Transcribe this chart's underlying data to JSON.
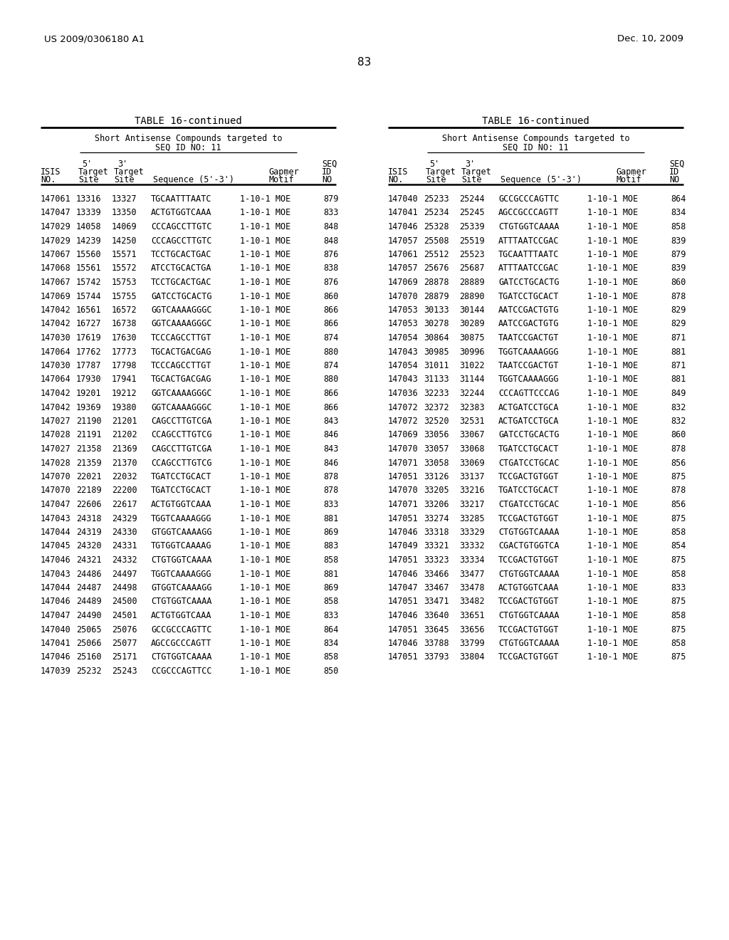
{
  "header_left": "US 2009/0306180 A1",
  "header_right": "Dec. 10, 2009",
  "page_number": "83",
  "table_title": "TABLE 16-continued",
  "table_subtitle": "Short Antisense Compounds targeted to",
  "table_subtitle2": "SEQ ID NO: 11",
  "left_table": [
    [
      "147061",
      "13316",
      "13327",
      "TGCAATTTAATC",
      "1-10-1 MOE",
      "879"
    ],
    [
      "147047",
      "13339",
      "13350",
      "ACTGTGGTCAAA",
      "1-10-1 MOE",
      "833"
    ],
    [
      "147029",
      "14058",
      "14069",
      "CCCAGCCTTGTC",
      "1-10-1 MOE",
      "848"
    ],
    [
      "147029",
      "14239",
      "14250",
      "CCCAGCCTTGTC",
      "1-10-1 MOE",
      "848"
    ],
    [
      "147067",
      "15560",
      "15571",
      "TCCTGCACTGAC",
      "1-10-1 MOE",
      "876"
    ],
    [
      "147068",
      "15561",
      "15572",
      "ATCCTGCACTGA",
      "1-10-1 MOE",
      "838"
    ],
    [
      "147067",
      "15742",
      "15753",
      "TCCTGCACTGAC",
      "1-10-1 MOE",
      "876"
    ],
    [
      "147069",
      "15744",
      "15755",
      "GATCCTGCACTG",
      "1-10-1 MOE",
      "860"
    ],
    [
      "147042",
      "16561",
      "16572",
      "GGTCAAAAGGGC",
      "1-10-1 MOE",
      "866"
    ],
    [
      "147042",
      "16727",
      "16738",
      "GGTCAAAAGGGC",
      "1-10-1 MOE",
      "866"
    ],
    [
      "147030",
      "17619",
      "17630",
      "TCCCAGCCTTGT",
      "1-10-1 MOE",
      "874"
    ],
    [
      "147064",
      "17762",
      "17773",
      "TGCACTGACGAG",
      "1-10-1 MOE",
      "880"
    ],
    [
      "147030",
      "17787",
      "17798",
      "TCCCAGCCTTGT",
      "1-10-1 MOE",
      "874"
    ],
    [
      "147064",
      "17930",
      "17941",
      "TGCACTGACGAG",
      "1-10-1 MOE",
      "880"
    ],
    [
      "147042",
      "19201",
      "19212",
      "GGTCAAAAGGGC",
      "1-10-1 MOE",
      "866"
    ],
    [
      "147042",
      "19369",
      "19380",
      "GGTCAAAAGGGC",
      "1-10-1 MOE",
      "866"
    ],
    [
      "147027",
      "21190",
      "21201",
      "CAGCCTTGTCGA",
      "1-10-1 MOE",
      "843"
    ],
    [
      "147028",
      "21191",
      "21202",
      "CCAGCCTTGTCG",
      "1-10-1 MOE",
      "846"
    ],
    [
      "147027",
      "21358",
      "21369",
      "CAGCCTTGTCGA",
      "1-10-1 MOE",
      "843"
    ],
    [
      "147028",
      "21359",
      "21370",
      "CCAGCCTTGTCG",
      "1-10-1 MOE",
      "846"
    ],
    [
      "147070",
      "22021",
      "22032",
      "TGATCCTGCACT",
      "1-10-1 MOE",
      "878"
    ],
    [
      "147070",
      "22189",
      "22200",
      "TGATCCTGCACT",
      "1-10-1 MOE",
      "878"
    ],
    [
      "147047",
      "22606",
      "22617",
      "ACTGTGGTCAAA",
      "1-10-1 MOE",
      "833"
    ],
    [
      "147043",
      "24318",
      "24329",
      "TGGTCAAAAGGG",
      "1-10-1 MOE",
      "881"
    ],
    [
      "147044",
      "24319",
      "24330",
      "GTGGTCAAAAGG",
      "1-10-1 MOE",
      "869"
    ],
    [
      "147045",
      "24320",
      "24331",
      "TGTGGTCAAAAG",
      "1-10-1 MOE",
      "883"
    ],
    [
      "147046",
      "24321",
      "24332",
      "CTGTGGTCAAAA",
      "1-10-1 MOE",
      "858"
    ],
    [
      "147043",
      "24486",
      "24497",
      "TGGTCAAAAGGG",
      "1-10-1 MOE",
      "881"
    ],
    [
      "147044",
      "24487",
      "24498",
      "GTGGTCAAAAGG",
      "1-10-1 MOE",
      "869"
    ],
    [
      "147046",
      "24489",
      "24500",
      "CTGTGGTCAAAA",
      "1-10-1 MOE",
      "858"
    ],
    [
      "147047",
      "24490",
      "24501",
      "ACTGTGGTCAAA",
      "1-10-1 MOE",
      "833"
    ],
    [
      "147040",
      "25065",
      "25076",
      "GCCGCCCAGTTC",
      "1-10-1 MOE",
      "864"
    ],
    [
      "147041",
      "25066",
      "25077",
      "AGCCGCCCAGTT",
      "1-10-1 MOE",
      "834"
    ],
    [
      "147046",
      "25160",
      "25171",
      "CTGTGGTCAAAA",
      "1-10-1 MOE",
      "858"
    ],
    [
      "147039",
      "25232",
      "25243",
      "CCGCCCAGTTCC",
      "1-10-1 MOE",
      "850"
    ]
  ],
  "right_table": [
    [
      "147040",
      "25233",
      "25244",
      "GCCGCCCAGTTC",
      "1-10-1 MOE",
      "864"
    ],
    [
      "147041",
      "25234",
      "25245",
      "AGCCGCCCAGTT",
      "1-10-1 MOE",
      "834"
    ],
    [
      "147046",
      "25328",
      "25339",
      "CTGTGGTCAAAA",
      "1-10-1 MOE",
      "858"
    ],
    [
      "147057",
      "25508",
      "25519",
      "ATTTAATCCGAC",
      "1-10-1 MOE",
      "839"
    ],
    [
      "147061",
      "25512",
      "25523",
      "TGCAATTTAATC",
      "1-10-1 MOE",
      "879"
    ],
    [
      "147057",
      "25676",
      "25687",
      "ATTTAATCCGAC",
      "1-10-1 MOE",
      "839"
    ],
    [
      "147069",
      "28878",
      "28889",
      "GATCCTGCACTG",
      "1-10-1 MOE",
      "860"
    ],
    [
      "147070",
      "28879",
      "28890",
      "TGATCCTGCACT",
      "1-10-1 MOE",
      "878"
    ],
    [
      "147053",
      "30133",
      "30144",
      "AATCCGACTGTG",
      "1-10-1 MOE",
      "829"
    ],
    [
      "147053",
      "30278",
      "30289",
      "AATCCGACTGTG",
      "1-10-1 MOE",
      "829"
    ],
    [
      "147054",
      "30864",
      "30875",
      "TAATCCGACTGT",
      "1-10-1 MOE",
      "871"
    ],
    [
      "147043",
      "30985",
      "30996",
      "TGGTCAAAAGGG",
      "1-10-1 MOE",
      "881"
    ],
    [
      "147054",
      "31011",
      "31022",
      "TAATCCGACTGT",
      "1-10-1 MOE",
      "871"
    ],
    [
      "147043",
      "31133",
      "31144",
      "TGGTCAAAAGGG",
      "1-10-1 MOE",
      "881"
    ],
    [
      "147036",
      "32233",
      "32244",
      "CCCAGTTCCCAG",
      "1-10-1 MOE",
      "849"
    ],
    [
      "147072",
      "32372",
      "32383",
      "ACTGATCCTGCA",
      "1-10-1 MOE",
      "832"
    ],
    [
      "147072",
      "32520",
      "32531",
      "ACTGATCCTGCA",
      "1-10-1 MOE",
      "832"
    ],
    [
      "147069",
      "33056",
      "33067",
      "GATCCTGCACTG",
      "1-10-1 MOE",
      "860"
    ],
    [
      "147070",
      "33057",
      "33068",
      "TGATCCTGCACT",
      "1-10-1 MOE",
      "878"
    ],
    [
      "147071",
      "33058",
      "33069",
      "CTGATCCTGCAC",
      "1-10-1 MOE",
      "856"
    ],
    [
      "147051",
      "33126",
      "33137",
      "TCCGACTGTGGT",
      "1-10-1 MOE",
      "875"
    ],
    [
      "147070",
      "33205",
      "33216",
      "TGATCCTGCACT",
      "1-10-1 MOE",
      "878"
    ],
    [
      "147071",
      "33206",
      "33217",
      "CTGATCCTGCAC",
      "1-10-1 MOE",
      "856"
    ],
    [
      "147051",
      "33274",
      "33285",
      "TCCGACTGTGGT",
      "1-10-1 MOE",
      "875"
    ],
    [
      "147046",
      "33318",
      "33329",
      "CTGTGGTCAAAA",
      "1-10-1 MOE",
      "858"
    ],
    [
      "147049",
      "33321",
      "33332",
      "CGACTGTGGTCA",
      "1-10-1 MOE",
      "854"
    ],
    [
      "147051",
      "33323",
      "33334",
      "TCCGACTGTGGT",
      "1-10-1 MOE",
      "875"
    ],
    [
      "147046",
      "33466",
      "33477",
      "CTGTGGTCAAAA",
      "1-10-1 MOE",
      "858"
    ],
    [
      "147047",
      "33467",
      "33478",
      "ACTGTGGTCAAA",
      "1-10-1 MOE",
      "833"
    ],
    [
      "147051",
      "33471",
      "33482",
      "TCCGACTGTGGT",
      "1-10-1 MOE",
      "875"
    ],
    [
      "147046",
      "33640",
      "33651",
      "CTGTGGTCAAAA",
      "1-10-1 MOE",
      "858"
    ],
    [
      "147051",
      "33645",
      "33656",
      "TCCGACTGTGGT",
      "1-10-1 MOE",
      "875"
    ],
    [
      "147046",
      "33788",
      "33799",
      "CTGTGGTCAAAA",
      "1-10-1 MOE",
      "858"
    ],
    [
      "147051",
      "33793",
      "33804",
      "TCCGACTGTGGT",
      "1-10-1 MOE",
      "875"
    ]
  ],
  "bg_color": "#ffffff",
  "text_color": "#000000"
}
